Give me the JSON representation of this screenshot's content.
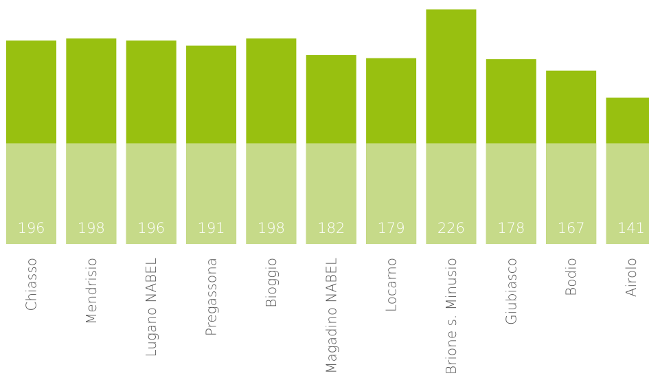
{
  "chart_data": {
    "type": "bar",
    "categories": [
      "Chiasso",
      "Mendrisio",
      "Lugano NABEL",
      "Pregassona",
      "Bioggio",
      "Magadino NABEL",
      "Locarno",
      "Brione s. Minusio",
      "Giubiasco",
      "Bodio",
      "Airolo"
    ],
    "values": [
      196,
      198,
      196,
      191,
      198,
      182,
      179,
      226,
      178,
      167,
      141
    ],
    "color": "#98c010",
    "lower_color": "#c6da89",
    "reference_value": 97,
    "ylim": [
      0,
      235
    ]
  }
}
